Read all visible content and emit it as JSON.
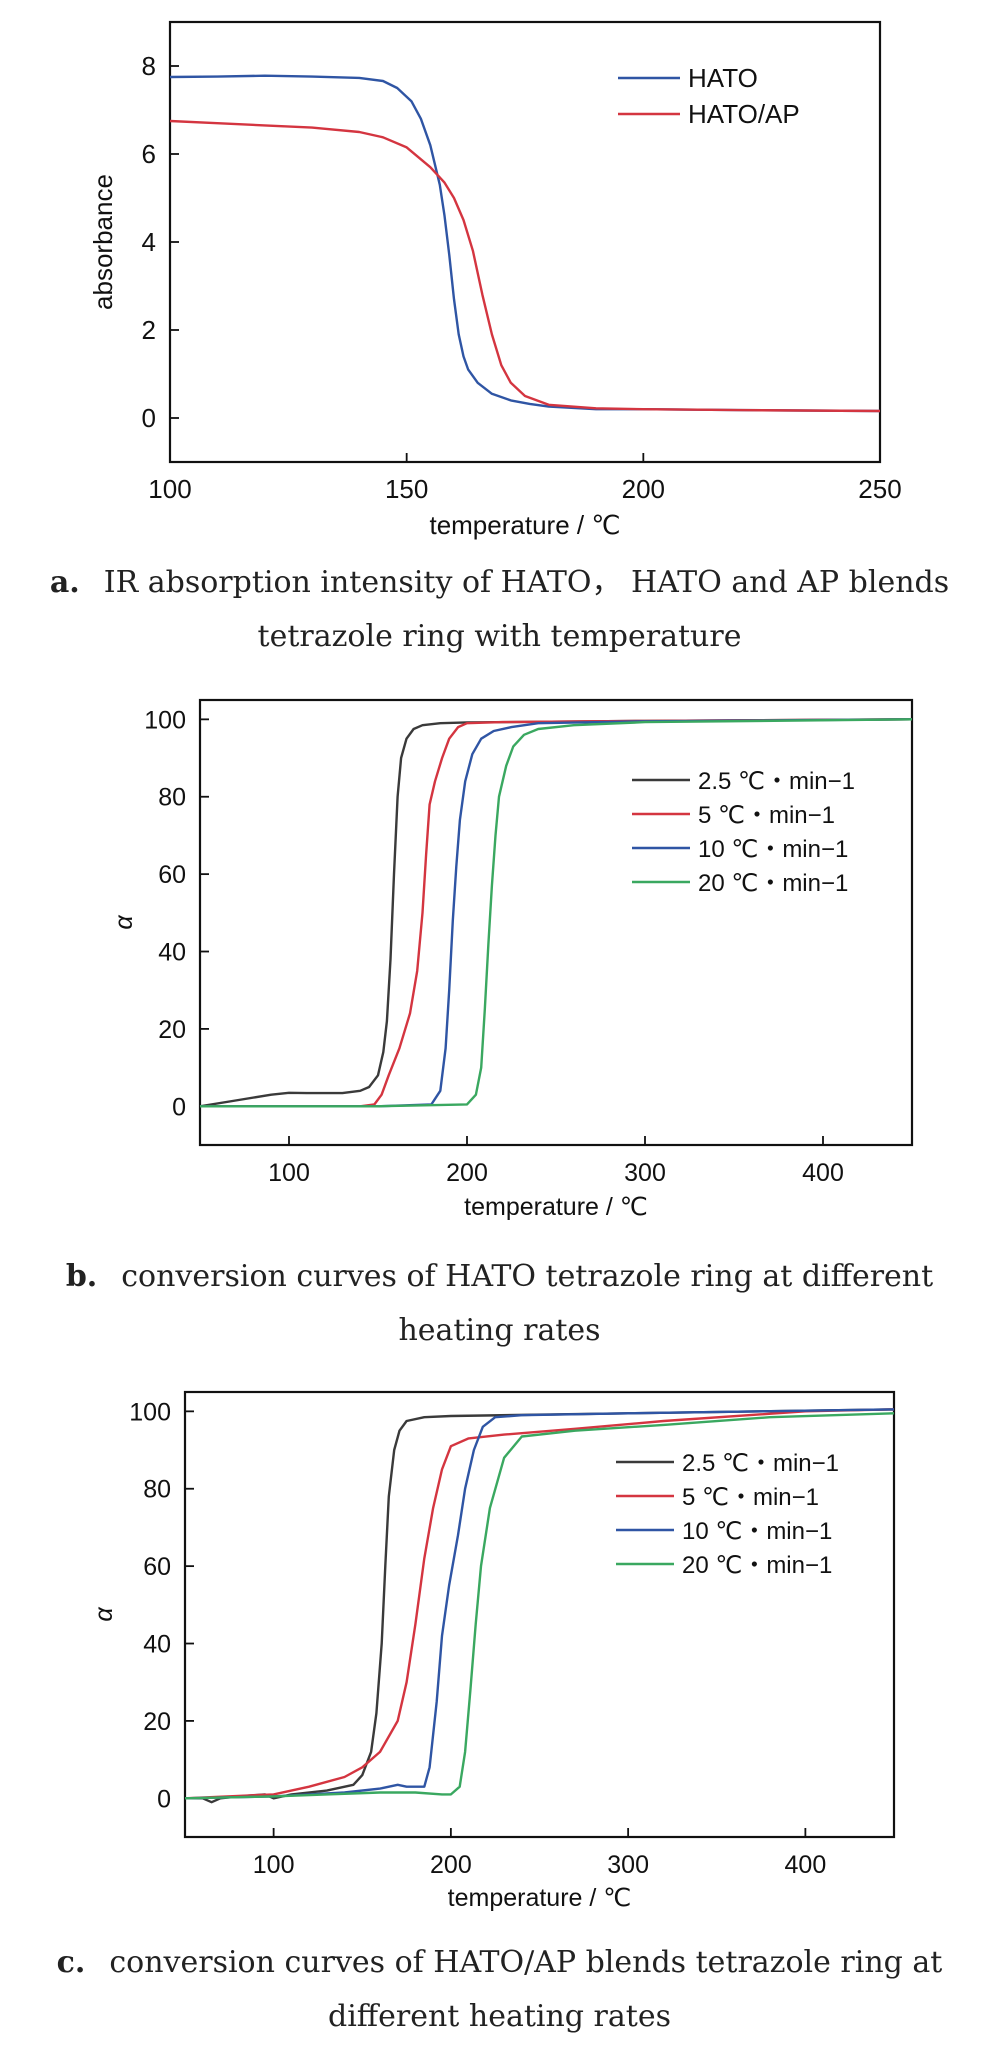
{
  "chart_data": [
    {
      "type": "line",
      "xlabel": "temperature / ℃",
      "ylabel": "absorbance",
      "xlim": [
        100,
        250
      ],
      "ylim": [
        -1,
        9
      ],
      "xticks": [
        100,
        150,
        200,
        250
      ],
      "yticks": [
        0,
        2,
        4,
        6,
        8
      ],
      "legend": "top-right",
      "grid": false,
      "series": [
        {
          "name": "HATO",
          "color": "#2f55a4",
          "x": [
            100,
            110,
            120,
            130,
            140,
            145,
            148,
            151,
            153,
            155,
            157,
            158,
            159,
            160,
            161,
            162,
            163,
            165,
            168,
            172,
            176,
            180,
            190,
            200,
            220,
            250
          ],
          "y": [
            7.75,
            7.76,
            7.78,
            7.76,
            7.73,
            7.66,
            7.5,
            7.2,
            6.8,
            6.2,
            5.3,
            4.6,
            3.7,
            2.7,
            1.9,
            1.4,
            1.1,
            0.8,
            0.55,
            0.4,
            0.32,
            0.26,
            0.2,
            0.2,
            0.18,
            0.16
          ]
        },
        {
          "name": "HATO/AP",
          "color": "#d43540",
          "x": [
            100,
            110,
            120,
            130,
            140,
            145,
            150,
            155,
            158,
            160,
            162,
            164,
            166,
            168,
            170,
            172,
            175,
            180,
            190,
            200,
            220,
            250
          ],
          "y": [
            6.75,
            6.7,
            6.65,
            6.6,
            6.5,
            6.38,
            6.15,
            5.7,
            5.35,
            5.0,
            4.5,
            3.8,
            2.8,
            1.9,
            1.2,
            0.8,
            0.5,
            0.3,
            0.22,
            0.2,
            0.18,
            0.16
          ]
        }
      ]
    },
    {
      "type": "line",
      "xlabel": "temperature / ℃",
      "ylabel": "α",
      "xlim": [
        50,
        450
      ],
      "ylim": [
        -10,
        105
      ],
      "xticks": [
        100,
        200,
        300,
        400
      ],
      "yticks": [
        0,
        20,
        40,
        60,
        80,
        100
      ],
      "legend": "top-right",
      "grid": false,
      "series": [
        {
          "name": "2.5 ℃・min−1",
          "color": "#3a3a3a",
          "x": [
            50,
            70,
            90,
            100,
            110,
            130,
            140,
            145,
            150,
            153,
            155,
            157,
            159,
            161,
            163,
            166,
            170,
            175,
            185,
            200,
            300,
            450
          ],
          "y": [
            0,
            1.5,
            3,
            3.5,
            3.4,
            3.4,
            4,
            5,
            8,
            14,
            22,
            38,
            60,
            80,
            90,
            95,
            97.5,
            98.5,
            99,
            99.2,
            99.6,
            100
          ]
        },
        {
          "name": "5 ℃・min−1",
          "color": "#d43540",
          "x": [
            50,
            100,
            140,
            148,
            152,
            156,
            162,
            168,
            172,
            175,
            177,
            179,
            182,
            186,
            190,
            195,
            200,
            220,
            300,
            450
          ],
          "y": [
            0,
            0,
            0,
            0.5,
            3,
            8,
            15,
            24,
            35,
            50,
            65,
            78,
            84,
            90,
            95,
            98,
            99,
            99.3,
            99.6,
            100
          ]
        },
        {
          "name": "10 ℃・min−1",
          "color": "#2f55a4",
          "x": [
            50,
            100,
            150,
            180,
            185,
            188,
            190,
            192,
            194,
            196,
            199,
            203,
            208,
            215,
            225,
            240,
            300,
            450
          ],
          "y": [
            0,
            0,
            0,
            0.5,
            4,
            15,
            30,
            48,
            62,
            74,
            84,
            91,
            95,
            97,
            98,
            99,
            99.5,
            100
          ]
        },
        {
          "name": "20 ℃・min−1",
          "color": "#3aa860",
          "x": [
            50,
            100,
            150,
            200,
            205,
            208,
            210,
            212,
            214,
            216,
            218,
            222,
            226,
            232,
            240,
            260,
            300,
            450
          ],
          "y": [
            0,
            0,
            0,
            0.5,
            3,
            10,
            25,
            42,
            57,
            70,
            80,
            88,
            93,
            96,
            97.5,
            98.5,
            99.3,
            100
          ]
        }
      ]
    },
    {
      "type": "line",
      "xlabel": "temperature / ℃",
      "ylabel": "α",
      "xlim": [
        50,
        450
      ],
      "ylim": [
        -10,
        105
      ],
      "xticks": [
        100,
        200,
        300,
        400
      ],
      "yticks": [
        0,
        20,
        40,
        60,
        80,
        100
      ],
      "legend": "top-right",
      "grid": false,
      "series": [
        {
          "name": "2.5 ℃・min−1",
          "color": "#3a3a3a",
          "x": [
            50,
            60,
            65,
            70,
            80,
            95,
            100,
            110,
            130,
            145,
            150,
            155,
            158,
            161,
            163,
            165,
            168,
            171,
            175,
            185,
            200,
            300,
            450
          ],
          "y": [
            0,
            0,
            -1,
            0,
            0.5,
            1,
            0,
            1,
            2,
            3.5,
            6,
            12,
            22,
            40,
            60,
            78,
            90,
            95,
            97.5,
            98.5,
            98.8,
            99.5,
            100.5
          ]
        },
        {
          "name": "5 ℃・min−1",
          "color": "#d43540",
          "x": [
            50,
            100,
            120,
            140,
            150,
            160,
            170,
            175,
            180,
            185,
            190,
            195,
            200,
            210,
            230,
            270,
            320,
            400,
            450
          ],
          "y": [
            0,
            1,
            3,
            5.5,
            8,
            12,
            20,
            30,
            45,
            62,
            75,
            85,
            91,
            93,
            94,
            95.5,
            97.5,
            100,
            100.5
          ]
        },
        {
          "name": "10 ℃・min−1",
          "color": "#2f55a4",
          "x": [
            50,
            100,
            140,
            160,
            170,
            175,
            185,
            188,
            192,
            195,
            199,
            204,
            208,
            213,
            218,
            225,
            240,
            300,
            450
          ],
          "y": [
            0,
            0.5,
            1.5,
            2.5,
            3.5,
            3,
            3,
            8,
            25,
            42,
            55,
            68,
            80,
            90,
            96,
            98.5,
            99,
            99.5,
            100.5
          ]
        },
        {
          "name": "20 ℃・min−1",
          "color": "#3aa860",
          "x": [
            50,
            100,
            130,
            160,
            180,
            195,
            200,
            205,
            208,
            211,
            214,
            217,
            222,
            230,
            240,
            270,
            320,
            380,
            450
          ],
          "y": [
            0,
            0.5,
            1,
            1.5,
            1.5,
            1,
            1,
            3,
            12,
            28,
            45,
            60,
            75,
            88,
            93.5,
            95,
            96.5,
            98.5,
            99.5
          ]
        }
      ]
    }
  ],
  "captions": [
    {
      "letter": "a.",
      "line1": "IR absorption intensity of HATO， HATO and AP blends",
      "line2": "tetrazole ring with temperature"
    },
    {
      "letter": "b.",
      "line1": "conversion curves of HATO tetrazole ring at different",
      "line2": "heating rates"
    },
    {
      "letter": "c.",
      "line1": "conversion curves of HATO/AP blends tetrazole ring at",
      "line2": "different heating rates"
    }
  ]
}
